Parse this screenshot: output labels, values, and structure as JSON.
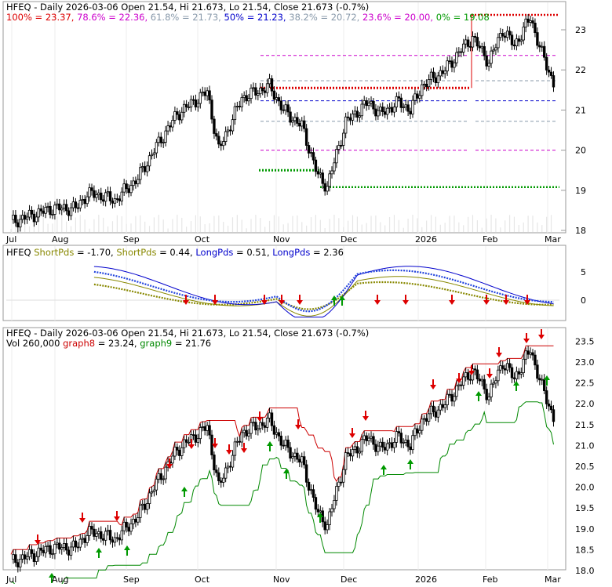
{
  "chart_data": [
    {
      "type": "candlestick",
      "panel": "price-fibonacci",
      "symbol": "HFEQ",
      "title_parts": [
        {
          "text": "HFEQ - Daily 2026-03-06 Open 21.54, Hi 21.673, Lo 21.54, Close 21.673 (-0.7%)",
          "color": "#000000"
        }
      ],
      "fib_levels": [
        {
          "label": "100%",
          "value": 23.37,
          "text": "100% = 23.37,",
          "color": "#dd0000"
        },
        {
          "label": "78.6%",
          "value": 22.36,
          "text": "78.6% = 22.36,",
          "color": "#cc00cc"
        },
        {
          "label": "61.8%",
          "value": 21.73,
          "text": "61.8% = 21.73,",
          "color": "#8899aa"
        },
        {
          "label": "50%",
          "value": 21.23,
          "text": "50% = 21.23,",
          "color": "#0000cc"
        },
        {
          "label": "38.2%",
          "value": 20.72,
          "text": "38.2% = 20.72,",
          "color": "#8899aa"
        },
        {
          "label": "23.6%",
          "value": 20.0,
          "text": "23.6% = 20.00,",
          "color": "#cc00cc"
        },
        {
          "label": "0%",
          "value": 19.08,
          "text": "0% = 19.08",
          "color": "#009900"
        }
      ],
      "y_ticks": [
        "23",
        "22",
        "21",
        "20",
        "19",
        "18"
      ],
      "ylim": [
        17.95,
        23.9
      ],
      "x_ticks": [
        "Jul",
        "Aug",
        "Sep",
        "Oct",
        "Nov",
        "Dec",
        "2026",
        "Feb",
        "Mar"
      ],
      "colors": {
        "up": "#ffffff",
        "down": "#000000",
        "resistance": "#dd0000",
        "support": "#009900"
      }
    },
    {
      "type": "line",
      "panel": "pds-oscillator",
      "legend": [
        {
          "text": "HFEQ",
          "color": "#000000"
        },
        {
          "text": "ShortPds",
          "color": "#888800"
        },
        {
          "text": "= -1.70,",
          "color": "#000000"
        },
        {
          "text": "ShortPds",
          "color": "#888800"
        },
        {
          "text": "= 0.44,",
          "color": "#000000"
        },
        {
          "text": "LongPds",
          "color": "#0000cc"
        },
        {
          "text": "= 0.51,",
          "color": "#000000"
        },
        {
          "text": "LongPds",
          "color": "#0000cc"
        },
        {
          "text": "= 2.36",
          "color": "#000000"
        }
      ],
      "y_ticks": [
        "5",
        "0"
      ],
      "ylim": [
        -3.2,
        8.5
      ],
      "series": [
        {
          "name": "ShortPds",
          "last": -1.7,
          "color": "#888800"
        },
        {
          "name": "ShortPds",
          "last": 0.44,
          "color": "#888800"
        },
        {
          "name": "LongPds",
          "last": 0.51,
          "color": "#0000cc"
        },
        {
          "name": "LongPds",
          "last": 2.36,
          "color": "#0000cc"
        }
      ]
    },
    {
      "type": "candlestick",
      "panel": "stop-bands",
      "title": "HFEQ - Daily 2026-03-06 Open 21.54, Hi 21.673, Lo 21.54, Close 21.673 (-0.7%)",
      "legend": [
        {
          "text": "Vol 260,000",
          "color": "#000000"
        },
        {
          "text": "graph8",
          "color": "#cc0000"
        },
        {
          "text": "= 23.24,",
          "color": "#000000"
        },
        {
          "text": "graph9",
          "color": "#008800"
        },
        {
          "text": "= 21.76",
          "color": "#000000"
        }
      ],
      "y_ticks": [
        "23.5",
        "23.0",
        "22.5",
        "22.0",
        "21.5",
        "21.0",
        "20.5",
        "20.0",
        "19.5",
        "19.0",
        "18.5",
        "18.0"
      ],
      "ylim": [
        17.94,
        23.6
      ],
      "x_ticks": [
        "Jul",
        "Aug",
        "Sep",
        "Oct",
        "Nov",
        "Dec",
        "2026",
        "Feb",
        "Mar"
      ]
    }
  ]
}
